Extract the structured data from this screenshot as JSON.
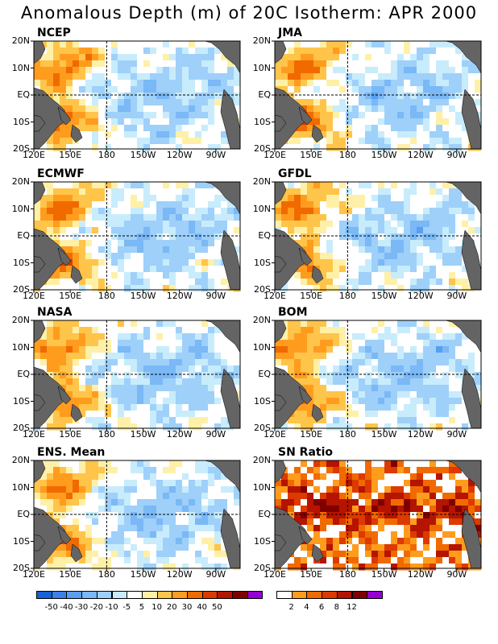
{
  "title": "Anomalous Depth (m) of 20C Isotherm: APR 2000",
  "lat_labels": [
    "20N",
    "10N",
    "EQ",
    "10S",
    "20S"
  ],
  "lon_labels": [
    "120E",
    "150E",
    "180",
    "150W",
    "120W",
    "90W"
  ],
  "panels": [
    {
      "name": "NCEP",
      "kind": "anom",
      "seed": 11
    },
    {
      "name": "JMA",
      "kind": "anom",
      "seed": 23
    },
    {
      "name": "ECMWF",
      "kind": "anom",
      "seed": 37
    },
    {
      "name": "GFDL",
      "kind": "anom",
      "seed": 41
    },
    {
      "name": "NASA",
      "kind": "anom",
      "seed": 53
    },
    {
      "name": "BOM",
      "kind": "anom",
      "seed": 67
    },
    {
      "name": "ENS. Mean",
      "kind": "anom",
      "seed": 79
    },
    {
      "name": "SN Ratio",
      "kind": "snr",
      "seed": 97
    }
  ],
  "anom_colorbar": {
    "colors": [
      "#1861d8",
      "#3a82e8",
      "#5a9ef2",
      "#7ab8f6",
      "#9ed0fa",
      "#c8ecfc",
      "#ffffff",
      "#fff0a8",
      "#ffc44a",
      "#ff9c1e",
      "#f06a00",
      "#dc3a00",
      "#b41400",
      "#800000",
      "#9600d2"
    ],
    "labels": [
      "-50",
      "-40",
      "-30",
      "-20",
      "-10",
      "-5",
      "5",
      "10",
      "20",
      "30",
      "40",
      "50"
    ]
  },
  "snr_colorbar": {
    "colors": [
      "#ffffff",
      "#ff9c1e",
      "#f06a00",
      "#dc3a00",
      "#b41400",
      "#800000",
      "#9600d2"
    ],
    "labels": [
      "2",
      "4",
      "6",
      "8",
      "12"
    ]
  },
  "colors": {
    "land": "#646464",
    "background": "#ffffff"
  }
}
